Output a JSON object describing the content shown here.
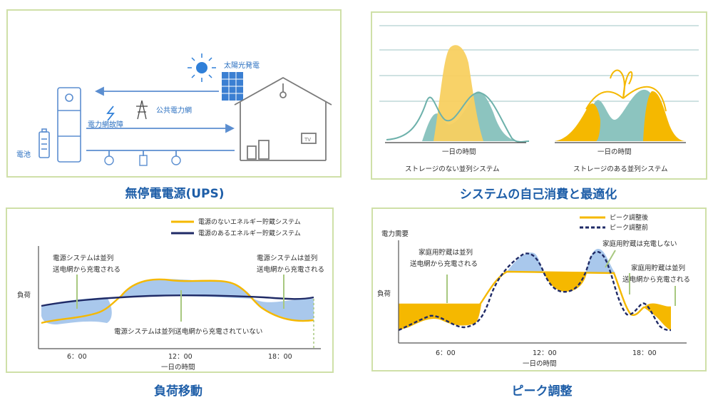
{
  "ups": {
    "caption": "無停電電源(UPS)",
    "solar": "太陽光発電",
    "grid": "公共電力網",
    "fault": "電力網故障",
    "battery": "電池",
    "tv": "TV"
  },
  "self_consumption": {
    "caption": "システムの自己消費と最適化",
    "left_xlabel": "一日の時間",
    "left_sub": "ストレージのない並列システム",
    "right_xlabel": "一日の時間",
    "right_sub": "ストレージのある並列システム"
  },
  "load_shift": {
    "caption": "負荷移動",
    "legend_no_power": "電源のないエネルギー貯蔵システム",
    "legend_power": "電源のあるエネルギー貯蔵システム",
    "note_left_1": "電源システムは並列",
    "note_left_2": "送电網から充電される",
    "note_right_1": "電源システムは並列",
    "note_right_2": "送电網から充電される",
    "note_mid": "電源システムは並列送电網から充電されていない",
    "ylabel": "負荷",
    "ticks": [
      "6：00",
      "12：00",
      "18：00"
    ],
    "xlabel": "一日の時間"
  },
  "peak": {
    "caption": "ピーク調整",
    "legend_after": "ピーク調整後",
    "legend_before": "ピーク調整前",
    "y_top": "電力需要",
    "ylabel": "負荷",
    "note_left_1": "家庭用貯蔵は並列",
    "note_left_2": "送电網から充電される",
    "note_top": "家庭用貯蔵は充電しない",
    "note_right_1": "家庭用貯蔵は並列",
    "note_right_2": "送电網から充電される",
    "ticks": [
      "6：00",
      "12：00",
      "18：00"
    ],
    "xlabel": "一日の時間"
  },
  "colors": {
    "panel_border": "#cfe0a8",
    "caption_blue": "#1e5ea8",
    "line_blue": "#4f86c9",
    "gold": "#f5b800",
    "gold_light": "#f8d060",
    "teal": "#8cc4bf",
    "navy": "#1f2a66",
    "fill_blue": "#a9c8ec"
  }
}
